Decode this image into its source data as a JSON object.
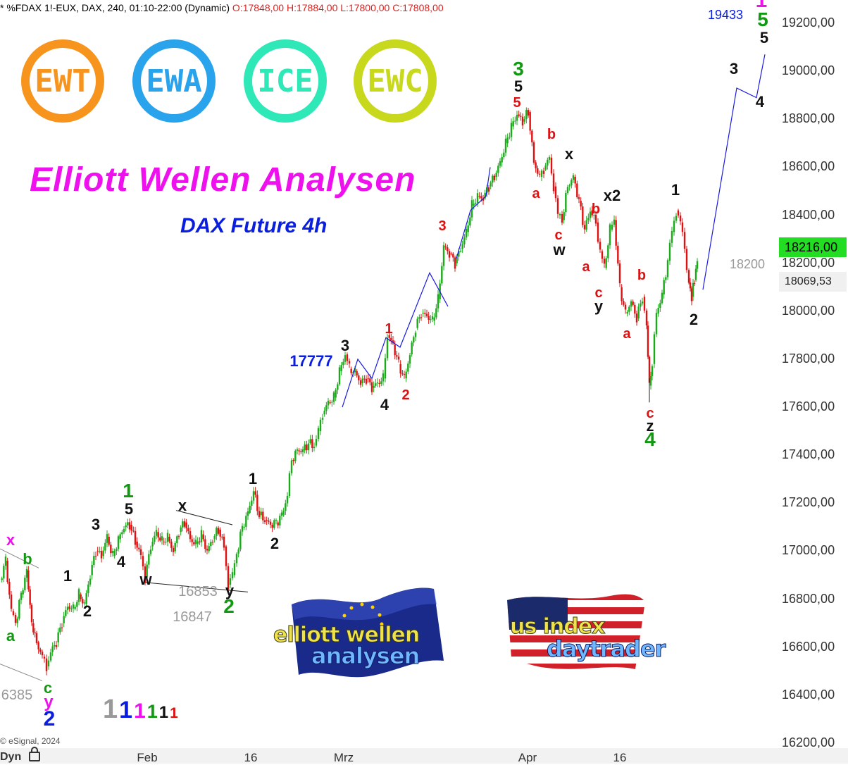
{
  "header": {
    "symbol_text": "* %FDAX 1!-EUX, DAX, 240, 01:10-22:00 (Dynamic)",
    "ohlc_text": "O:17848,00 H:17884,00 L:17800,00 C:17808,00"
  },
  "badges": [
    {
      "text": "EWT",
      "color": "#f7941d"
    },
    {
      "text": "EWA",
      "color": "#29a3ec"
    },
    {
      "text": "ICE",
      "color": "#2ee8b8"
    },
    {
      "text": "EWC",
      "color": "#c8d81c"
    }
  ],
  "title": "Elliott Wellen Analysen",
  "subtitle": "DAX Future 4h",
  "logos": {
    "left_line1": "elliott wellen",
    "left_line2": "analysen",
    "right_line1": "us index",
    "right_line2": "daytrader"
  },
  "footer": {
    "copyright": "© eSignal, 2024",
    "dyn_label": "Dyn"
  },
  "colors": {
    "up_candle": "#1aaa1a",
    "down_candle": "#e01010",
    "projection_line": "#1a1ae0",
    "wave_red": "#e01010",
    "wave_green": "#119911",
    "wave_blue": "#0a1ee0",
    "wave_magenta": "#ee11ee",
    "wave_black": "#111111",
    "wave_gray": "#999999",
    "last_price_bg": "#22dd22"
  },
  "chart_data": {
    "type": "candlestick",
    "timeframe": "240",
    "ylim": [
      16200,
      19300
    ],
    "y_ticks": [
      "16200,00",
      "16400,00",
      "16600,00",
      "16800,00",
      "17000,00",
      "17200,00",
      "17400,00",
      "17600,00",
      "17800,00",
      "18000,00",
      "18200,00",
      "18400,00",
      "18600,00",
      "18800,00",
      "19000,00",
      "19200,00"
    ],
    "x_tick_labels": [
      "Feb",
      "16",
      "Mrz",
      "Apr",
      "16"
    ],
    "last_price": "18216,00",
    "marker_price": "18069,53",
    "price_path": [
      [
        0,
        16880
      ],
      [
        8,
        16960
      ],
      [
        16,
        16750
      ],
      [
        22,
        16700
      ],
      [
        30,
        16820
      ],
      [
        38,
        16920
      ],
      [
        45,
        16700
      ],
      [
        52,
        16620
      ],
      [
        60,
        16560
      ],
      [
        66,
        16520
      ],
      [
        72,
        16580
      ],
      [
        80,
        16620
      ],
      [
        88,
        16700
      ],
      [
        96,
        16770
      ],
      [
        104,
        16760
      ],
      [
        112,
        16820
      ],
      [
        120,
        16780
      ],
      [
        128,
        16900
      ],
      [
        136,
        17000
      ],
      [
        144,
        16980
      ],
      [
        152,
        17060
      ],
      [
        160,
        16980
      ],
      [
        168,
        17050
      ],
      [
        176,
        17100
      ],
      [
        184,
        17110
      ],
      [
        192,
        17040
      ],
      [
        200,
        16980
      ],
      [
        206,
        16890
      ],
      [
        214,
        17020
      ],
      [
        222,
        17080
      ],
      [
        230,
        17040
      ],
      [
        238,
        17060
      ],
      [
        246,
        17000
      ],
      [
        254,
        17080
      ],
      [
        262,
        17120
      ],
      [
        270,
        17050
      ],
      [
        278,
        17030
      ],
      [
        286,
        17070
      ],
      [
        294,
        17000
      ],
      [
        302,
        17050
      ],
      [
        310,
        17090
      ],
      [
        318,
        17020
      ],
      [
        324,
        16860
      ],
      [
        330,
        16900
      ],
      [
        336,
        16990
      ],
      [
        344,
        17100
      ],
      [
        352,
        17160
      ],
      [
        360,
        17250
      ],
      [
        368,
        17150
      ],
      [
        376,
        17130
      ],
      [
        384,
        17110
      ],
      [
        392,
        17120
      ],
      [
        400,
        17150
      ],
      [
        408,
        17230
      ],
      [
        414,
        17380
      ],
      [
        422,
        17420
      ],
      [
        430,
        17420
      ],
      [
        438,
        17450
      ],
      [
        446,
        17440
      ],
      [
        452,
        17500
      ],
      [
        458,
        17570
      ],
      [
        466,
        17620
      ],
      [
        474,
        17640
      ],
      [
        482,
        17750
      ],
      [
        490,
        17820
      ],
      [
        496,
        17760
      ],
      [
        504,
        17750
      ],
      [
        512,
        17700
      ],
      [
        520,
        17720
      ],
      [
        528,
        17680
      ],
      [
        536,
        17700
      ],
      [
        544,
        17720
      ],
      [
        550,
        17900
      ],
      [
        558,
        17860
      ],
      [
        566,
        17780
      ],
      [
        574,
        17720
      ],
      [
        582,
        17820
      ],
      [
        590,
        17930
      ],
      [
        598,
        17990
      ],
      [
        606,
        17980
      ],
      [
        614,
        17960
      ],
      [
        622,
        18050
      ],
      [
        630,
        18270
      ],
      [
        638,
        18240
      ],
      [
        646,
        18200
      ],
      [
        654,
        18260
      ],
      [
        662,
        18330
      ],
      [
        670,
        18440
      ],
      [
        678,
        18480
      ],
      [
        686,
        18470
      ],
      [
        694,
        18520
      ],
      [
        702,
        18560
      ],
      [
        710,
        18620
      ],
      [
        718,
        18700
      ],
      [
        726,
        18770
      ],
      [
        734,
        18820
      ],
      [
        742,
        18790
      ],
      [
        750,
        18830
      ],
      [
        758,
        18620
      ],
      [
        766,
        18560
      ],
      [
        772,
        18590
      ],
      [
        780,
        18640
      ],
      [
        786,
        18520
      ],
      [
        792,
        18400
      ],
      [
        798,
        18380
      ],
      [
        806,
        18520
      ],
      [
        814,
        18560
      ],
      [
        822,
        18460
      ],
      [
        830,
        18340
      ],
      [
        838,
        18420
      ],
      [
        846,
        18370
      ],
      [
        852,
        18250
      ],
      [
        858,
        18180
      ],
      [
        866,
        18340
      ],
      [
        872,
        18380
      ],
      [
        880,
        18100
      ],
      [
        888,
        17990
      ],
      [
        896,
        18040
      ],
      [
        904,
        17970
      ],
      [
        912,
        18060
      ],
      [
        918,
        17940
      ],
      [
        922,
        17690
      ],
      [
        926,
        17780
      ],
      [
        932,
        17990
      ],
      [
        940,
        18070
      ],
      [
        948,
        18210
      ],
      [
        954,
        18330
      ],
      [
        960,
        18420
      ],
      [
        966,
        18370
      ],
      [
        972,
        18260
      ],
      [
        978,
        18120
      ],
      [
        982,
        18060
      ],
      [
        986,
        18130
      ],
      [
        990,
        18216
      ]
    ],
    "projection_paths": [
      [
        [
          998,
          18090
        ],
        [
          1046,
          18930
        ],
        [
          1074,
          18890
        ],
        [
          1086,
          19070
        ]
      ],
      [
        [
          486,
          17600
        ],
        [
          508,
          17800
        ],
        [
          528,
          17720
        ],
        [
          548,
          17890
        ],
        [
          568,
          17850
        ],
        [
          610,
          18160
        ],
        [
          636,
          18020
        ]
      ],
      [
        [
          648,
          18220
        ],
        [
          668,
          18420
        ],
        [
          690,
          18480
        ],
        [
          696,
          18600
        ]
      ]
    ],
    "trend_lines": [
      [
        [
          250,
          17170
        ],
        [
          330,
          17110
        ]
      ],
      [
        [
          205,
          16870
        ],
        [
          352,
          16830
        ]
      ],
      [
        [
          0,
          16530
        ],
        [
          60,
          16460
        ]
      ],
      [
        [
          0,
          17010
        ],
        [
          55,
          16930
        ]
      ]
    ],
    "annotations": [
      {
        "text": "1",
        "x": 1081,
        "y": 19295,
        "color": "wave_magenta",
        "size": 30
      },
      {
        "text": "5",
        "x": 1083,
        "y": 19215,
        "color": "wave_green",
        "size": 28
      },
      {
        "text": "5",
        "x": 1085,
        "y": 19138,
        "color": "wave_black",
        "size": 22
      },
      {
        "text": "19433",
        "x": 1030,
        "y": 19235,
        "color": "wave_blue",
        "size": 18,
        "weight": "normal"
      },
      {
        "text": "3",
        "x": 1042,
        "y": 19010,
        "color": "wave_black",
        "size": 22
      },
      {
        "text": "4",
        "x": 1079,
        "y": 18870,
        "color": "wave_black",
        "size": 22
      },
      {
        "text": "18200",
        "x": 1061,
        "y": 18195,
        "color": "wave_gray",
        "size": 18,
        "weight": "normal"
      },
      {
        "text": "3",
        "x": 736,
        "y": 19010,
        "color": "wave_green",
        "size": 28
      },
      {
        "text": "5",
        "x": 736,
        "y": 18935,
        "color": "wave_black",
        "size": 22
      },
      {
        "text": "5",
        "x": 734,
        "y": 18867,
        "color": "wave_red",
        "size": 20
      },
      {
        "text": "b",
        "x": 783,
        "y": 18735,
        "color": "wave_red",
        "size": 20
      },
      {
        "text": "x",
        "x": 808,
        "y": 18655,
        "color": "wave_black",
        "size": 22
      },
      {
        "text": "a",
        "x": 761,
        "y": 18490,
        "color": "wave_red",
        "size": 20
      },
      {
        "text": "x2",
        "x": 869,
        "y": 18480,
        "color": "wave_black",
        "size": 22
      },
      {
        "text": "b",
        "x": 846,
        "y": 18425,
        "color": "wave_red",
        "size": 20
      },
      {
        "text": "c",
        "x": 793,
        "y": 18315,
        "color": "wave_red",
        "size": 20
      },
      {
        "text": "w",
        "x": 794,
        "y": 18255,
        "color": "wave_black",
        "size": 22
      },
      {
        "text": "a",
        "x": 832,
        "y": 18185,
        "color": "wave_red",
        "size": 20
      },
      {
        "text": "b",
        "x": 911,
        "y": 18150,
        "color": "wave_red",
        "size": 20
      },
      {
        "text": "c",
        "x": 850,
        "y": 18075,
        "color": "wave_red",
        "size": 20
      },
      {
        "text": "y",
        "x": 850,
        "y": 18020,
        "color": "wave_black",
        "size": 22
      },
      {
        "text": "1",
        "x": 959,
        "y": 18505,
        "color": "wave_black",
        "size": 22
      },
      {
        "text": "2",
        "x": 985,
        "y": 17965,
        "color": "wave_black",
        "size": 22
      },
      {
        "text": "a",
        "x": 890,
        "y": 17905,
        "color": "wave_red",
        "size": 20
      },
      {
        "text": "c",
        "x": 923,
        "y": 17575,
        "color": "wave_red",
        "size": 20
      },
      {
        "text": "z",
        "x": 923,
        "y": 17520,
        "color": "wave_black",
        "size": 22
      },
      {
        "text": "4",
        "x": 923,
        "y": 17465,
        "color": "wave_green",
        "size": 28
      },
      {
        "text": "3",
        "x": 628,
        "y": 18355,
        "color": "wave_red",
        "size": 20
      },
      {
        "text": "1",
        "x": 552,
        "y": 17925,
        "color": "wave_red",
        "size": 20
      },
      {
        "text": "2",
        "x": 576,
        "y": 17650,
        "color": "wave_red",
        "size": 20
      },
      {
        "text": "3",
        "x": 490,
        "y": 17855,
        "color": "wave_black",
        "size": 22
      },
      {
        "text": "4",
        "x": 546,
        "y": 17610,
        "color": "wave_black",
        "size": 22
      },
      {
        "text": "17777",
        "x": 442,
        "y": 17790,
        "color": "wave_blue",
        "size": 22
      },
      {
        "text": "1",
        "x": 359,
        "y": 17300,
        "color": "wave_black",
        "size": 22
      },
      {
        "text": "2",
        "x": 390,
        "y": 17030,
        "color": "wave_black",
        "size": 22
      },
      {
        "text": "1",
        "x": 182,
        "y": 17250,
        "color": "wave_green",
        "size": 28
      },
      {
        "text": "5",
        "x": 183,
        "y": 17175,
        "color": "wave_black",
        "size": 22
      },
      {
        "text": "x",
        "x": 259,
        "y": 17190,
        "color": "wave_black",
        "size": 22
      },
      {
        "text": "3",
        "x": 136,
        "y": 17110,
        "color": "wave_black",
        "size": 22
      },
      {
        "text": "4",
        "x": 172,
        "y": 16955,
        "color": "wave_black",
        "size": 22
      },
      {
        "text": "w",
        "x": 207,
        "y": 16880,
        "color": "wave_black",
        "size": 22
      },
      {
        "text": "1",
        "x": 96,
        "y": 16895,
        "color": "wave_black",
        "size": 22
      },
      {
        "text": "2",
        "x": 124,
        "y": 16750,
        "color": "wave_black",
        "size": 22
      },
      {
        "text": "16853",
        "x": 281,
        "y": 16830,
        "color": "wave_gray",
        "size": 20,
        "weight": "normal"
      },
      {
        "text": "y",
        "x": 326,
        "y": 16835,
        "color": "wave_black",
        "size": 22
      },
      {
        "text": "2",
        "x": 325,
        "y": 16770,
        "color": "wave_green",
        "size": 28
      },
      {
        "text": "16847",
        "x": 273,
        "y": 16725,
        "color": "wave_gray",
        "size": 20,
        "weight": "normal"
      },
      {
        "text": "x",
        "x": 15,
        "y": 17045,
        "color": "wave_magenta",
        "size": 22
      },
      {
        "text": "b",
        "x": 39,
        "y": 16965,
        "color": "wave_green",
        "size": 22
      },
      {
        "text": "a",
        "x": 15,
        "y": 16645,
        "color": "wave_green",
        "size": 22
      },
      {
        "text": "c",
        "x": 68,
        "y": 16430,
        "color": "wave_green",
        "size": 22
      },
      {
        "text": "y",
        "x": 69,
        "y": 16370,
        "color": "wave_magenta",
        "size": 24
      },
      {
        "text": "2",
        "x": 70,
        "y": 16300,
        "color": "wave_blue",
        "size": 30
      },
      {
        "text": "6385",
        "x": 24,
        "y": 16400,
        "color": "wave_gray",
        "size": 20,
        "weight": "normal"
      }
    ],
    "degree_legend": [
      {
        "text": "1",
        "color": "wave_gray",
        "size": 38
      },
      {
        "text": "1",
        "color": "wave_blue",
        "size": 34
      },
      {
        "text": "1",
        "color": "wave_magenta",
        "size": 30
      },
      {
        "text": "1",
        "color": "wave_green",
        "size": 27
      },
      {
        "text": "1",
        "color": "wave_black",
        "size": 24
      },
      {
        "text": "1",
        "color": "wave_red",
        "size": 21
      }
    ]
  }
}
